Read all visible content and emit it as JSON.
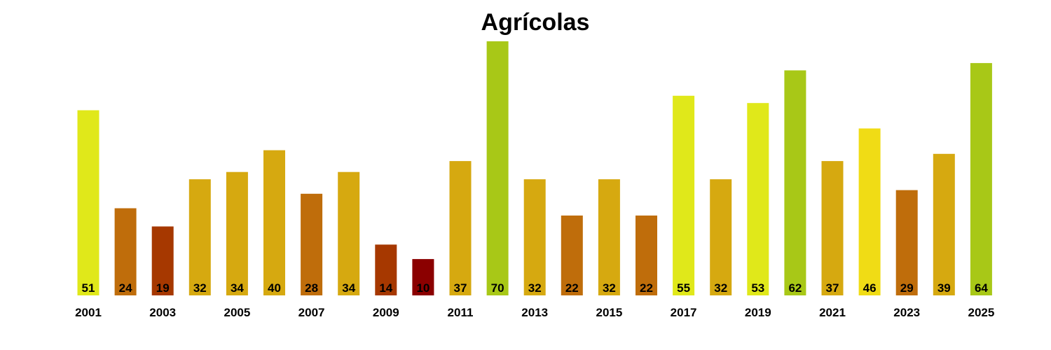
{
  "chart_data": {
    "type": "bar",
    "title": "Agrícolas",
    "xlabel": "",
    "ylabel": "",
    "grid": false,
    "categories": [
      "2001",
      "2002",
      "2003",
      "2004",
      "2005",
      "2006",
      "2007",
      "2008",
      "2009",
      "2010",
      "2011",
      "2012",
      "2013",
      "2014",
      "2015",
      "2016",
      "2017",
      "2018",
      "2019",
      "2020",
      "2021",
      "2022",
      "2023",
      "2024",
      "2025"
    ],
    "tick_labels": [
      "2001",
      "",
      "2003",
      "",
      "2005",
      "",
      "2007",
      "",
      "2009",
      "",
      "2011",
      "",
      "2013",
      "",
      "2015",
      "",
      "2017",
      "",
      "2019",
      "",
      "2021",
      "",
      "2023",
      "",
      "2025"
    ],
    "values": [
      51,
      24,
      19,
      32,
      34,
      40,
      28,
      34,
      14,
      10,
      37,
      70,
      32,
      22,
      32,
      22,
      55,
      32,
      53,
      62,
      37,
      46,
      29,
      39,
      64
    ],
    "colors": [
      "#e0e81a",
      "#bf6d0b",
      "#a63800",
      "#d6a910",
      "#d6a910",
      "#d6a910",
      "#bf6d0b",
      "#d6a910",
      "#a63800",
      "#8b0000",
      "#d6a910",
      "#a8c817",
      "#d6a910",
      "#bf6d0b",
      "#d6a910",
      "#bf6d0b",
      "#e0e81a",
      "#d6a910",
      "#e0e81a",
      "#a8c817",
      "#d6a910",
      "#f0dc15",
      "#bf6d0b",
      "#d6a910",
      "#a8c817"
    ],
    "ylim": [
      0,
      70
    ]
  }
}
